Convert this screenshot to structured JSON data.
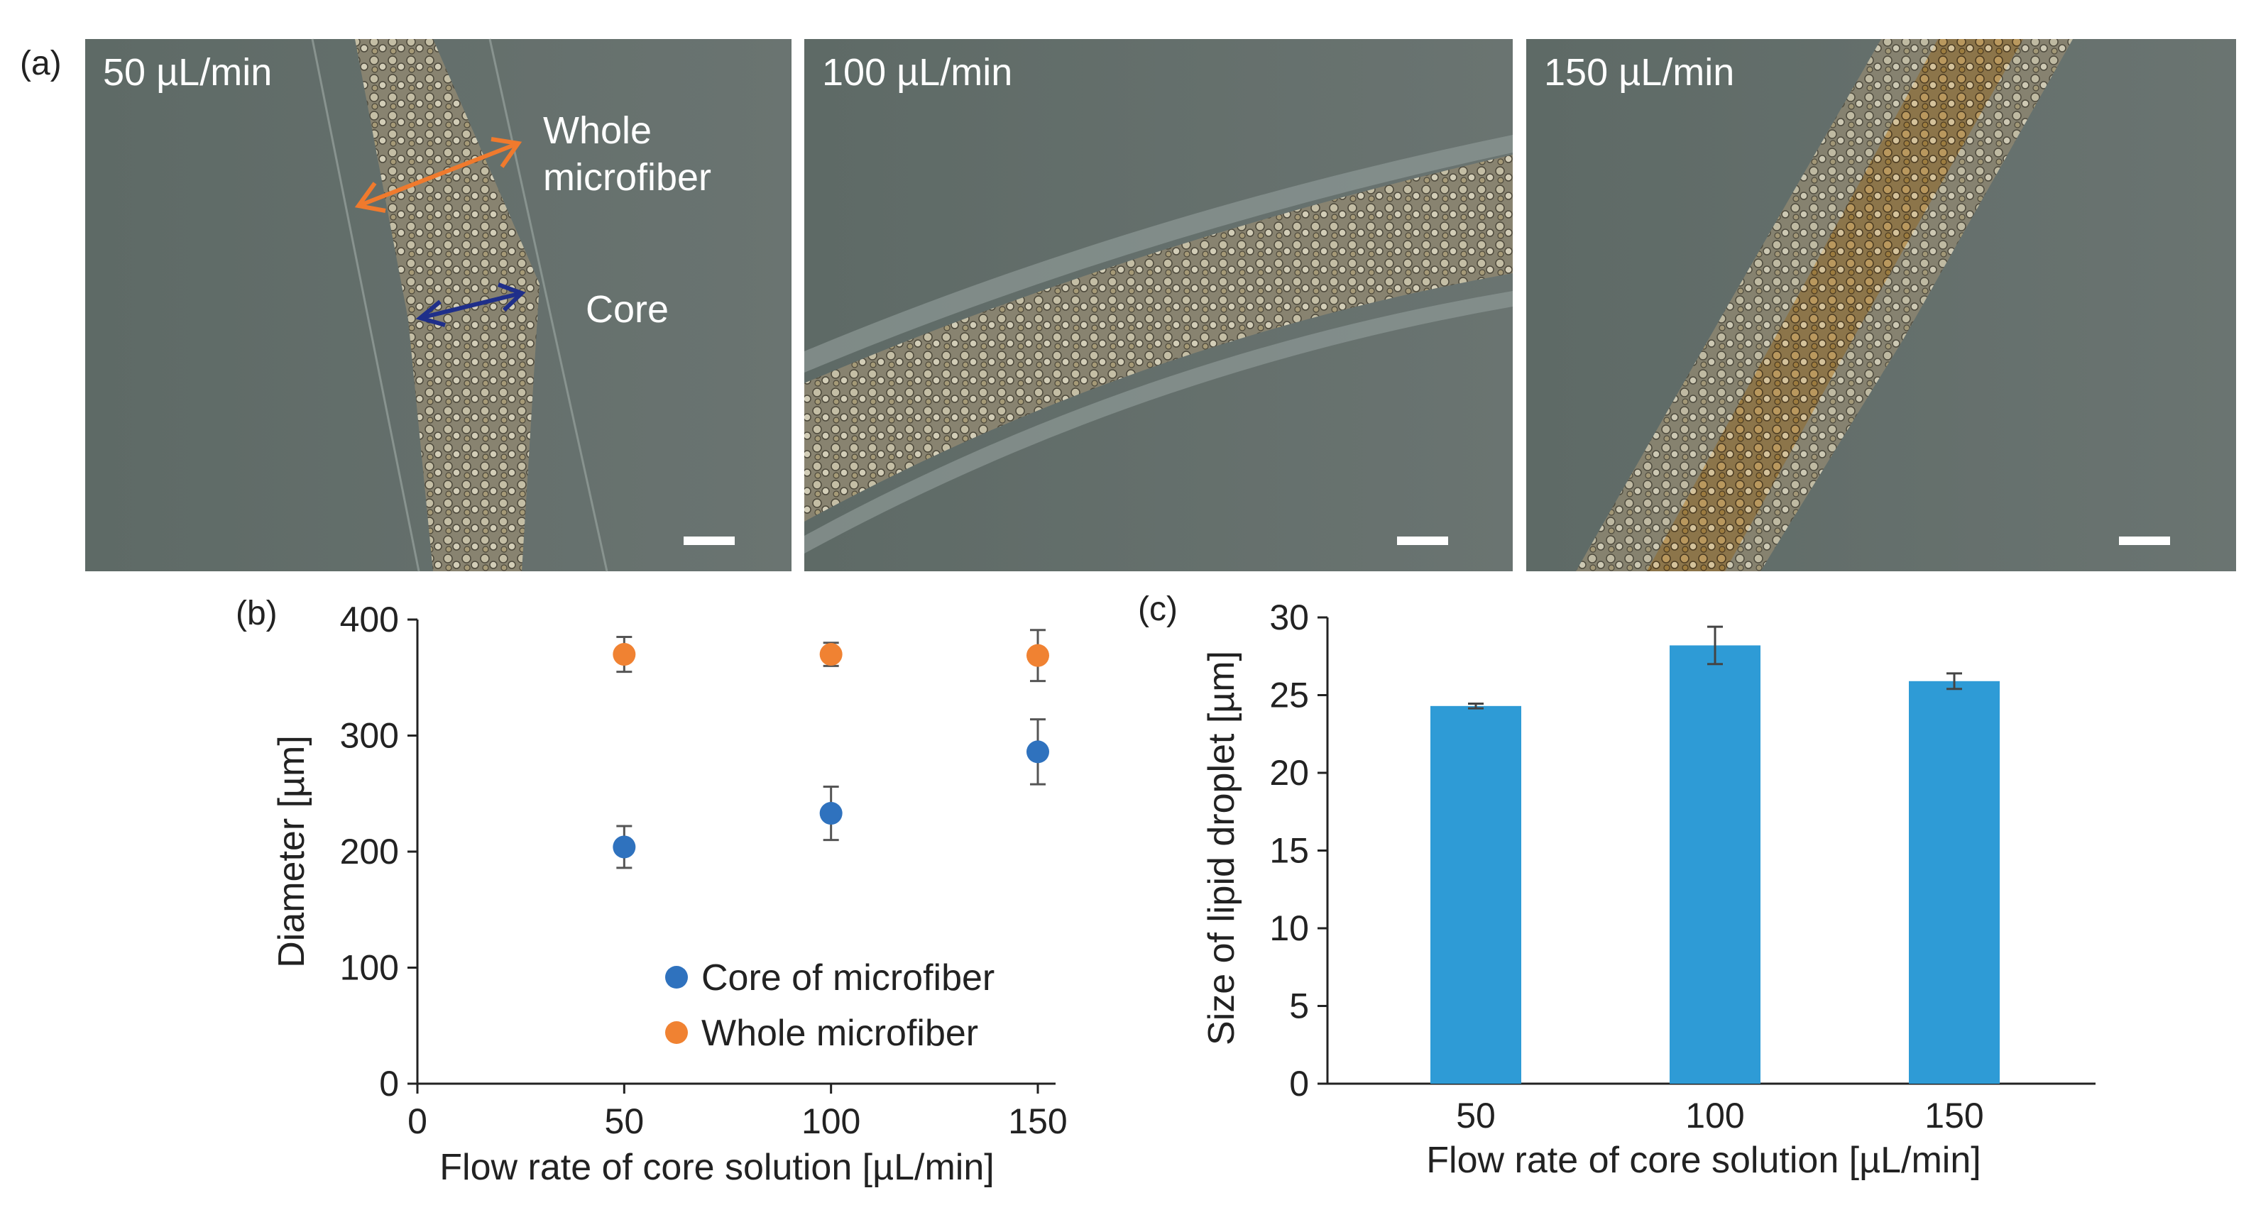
{
  "figure": {
    "panel_a": {
      "label": "(a)",
      "photos": [
        {
          "flow_label": "50 µL/min"
        },
        {
          "flow_label": "100 µL/min"
        },
        {
          "flow_label": "150 µL/min"
        }
      ],
      "annotations": {
        "whole_line1": "Whole",
        "whole_line2": "microfiber",
        "core": "Core"
      }
    },
    "panel_b_label": "(b)",
    "panel_c_label": "(c)"
  },
  "colors": {
    "core": "#2f72be",
    "whole": "#f08232",
    "bar": "#2e9bd6",
    "annot_orange": "#f07a2d",
    "annot_blue": "#1f2f8a"
  },
  "chart_data": [
    {
      "id": "b",
      "type": "scatter",
      "xlabel": "Flow rate of core solution [µL/min]",
      "ylabel": "Diameter [µm]",
      "xlim": [
        0,
        150
      ],
      "ylim": [
        0,
        400
      ],
      "xticks": [
        "0",
        "50",
        "100",
        "150"
      ],
      "yticks": [
        "0",
        "100",
        "200",
        "300",
        "400"
      ],
      "series": [
        {
          "name": "Core of microfiber",
          "x": [
            50,
            100,
            150
          ],
          "y": [
            204,
            233,
            286
          ],
          "err": [
            18,
            23,
            28
          ]
        },
        {
          "name": "Whole microfiber",
          "x": [
            50,
            100,
            150
          ],
          "y": [
            370,
            370,
            369
          ],
          "err": [
            15,
            10,
            22
          ]
        }
      ],
      "legend": "bottom-right"
    },
    {
      "id": "c",
      "type": "bar",
      "xlabel": "Flow rate of core solution [µL/min]",
      "ylabel": "Size of lipid droplet [µm]",
      "categories": [
        "50",
        "100",
        "150"
      ],
      "values": [
        24.3,
        28.2,
        25.9
      ],
      "err": [
        0.15,
        1.2,
        0.5
      ],
      "ylim": [
        0,
        30
      ],
      "yticks": [
        "0",
        "5",
        "10",
        "15",
        "20",
        "25",
        "30"
      ]
    }
  ]
}
